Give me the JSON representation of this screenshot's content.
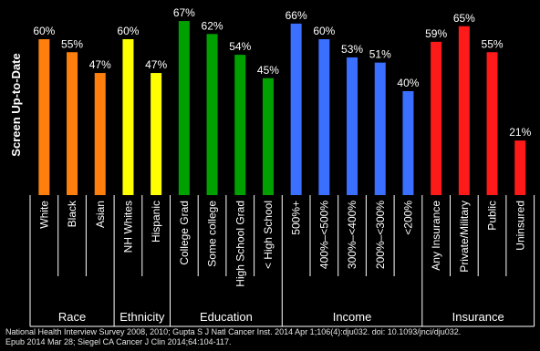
{
  "chart_data": {
    "type": "bar",
    "ylabel": "Screen Up-to-Date",
    "ylim": [
      0,
      70
    ],
    "grid": false,
    "legend": "none",
    "categories": [
      "White",
      "Black",
      "Asian",
      "NH Whites",
      "Hispanic",
      "College Grad",
      "Some college",
      "High School Grad",
      "< High School",
      "500%+",
      "400%–<500%",
      "300%–<400%",
      "200%–<300%",
      "<200%",
      "Any Insurance",
      "Private/Military",
      "Public",
      "Uninsured"
    ],
    "values": [
      60,
      55,
      47,
      60,
      47,
      67,
      62,
      54,
      45,
      66,
      60,
      53,
      51,
      40,
      59,
      65,
      55,
      21
    ],
    "value_labels": [
      "60%",
      "55%",
      "47%",
      "60%",
      "47%",
      "67%",
      "62%",
      "54%",
      "45%",
      "66%",
      "60%",
      "53%",
      "51%",
      "40%",
      "59%",
      "65%",
      "55%",
      "21%"
    ],
    "colors": [
      "#ff7f0e",
      "#ff7f0e",
      "#ff7f0e",
      "#ffff00",
      "#ffff00",
      "#00a000",
      "#00a000",
      "#00a000",
      "#00a000",
      "#3b6fff",
      "#3b6fff",
      "#3b6fff",
      "#3b6fff",
      "#3b6fff",
      "#ff1a1a",
      "#ff1a1a",
      "#ff1a1a",
      "#ff1a1a"
    ],
    "groups": [
      {
        "name": "Race",
        "count": 3
      },
      {
        "name": "Ethnicity",
        "count": 2
      },
      {
        "name": "Education",
        "count": 4
      },
      {
        "name": "Income",
        "count": 5
      },
      {
        "name": "Insurance",
        "count": 4
      }
    ]
  },
  "footnote": {
    "line1": "National Health Interview Survey 2008, 2010; Gupta S J Natl Cancer Inst. 2014 Apr 1;106(4):dju032. doi: 10.1093/jnci/dju032.",
    "line2": "Epub 2014 Mar 28; Siegel CA Cancer J Clin 2014;64:104-117."
  }
}
